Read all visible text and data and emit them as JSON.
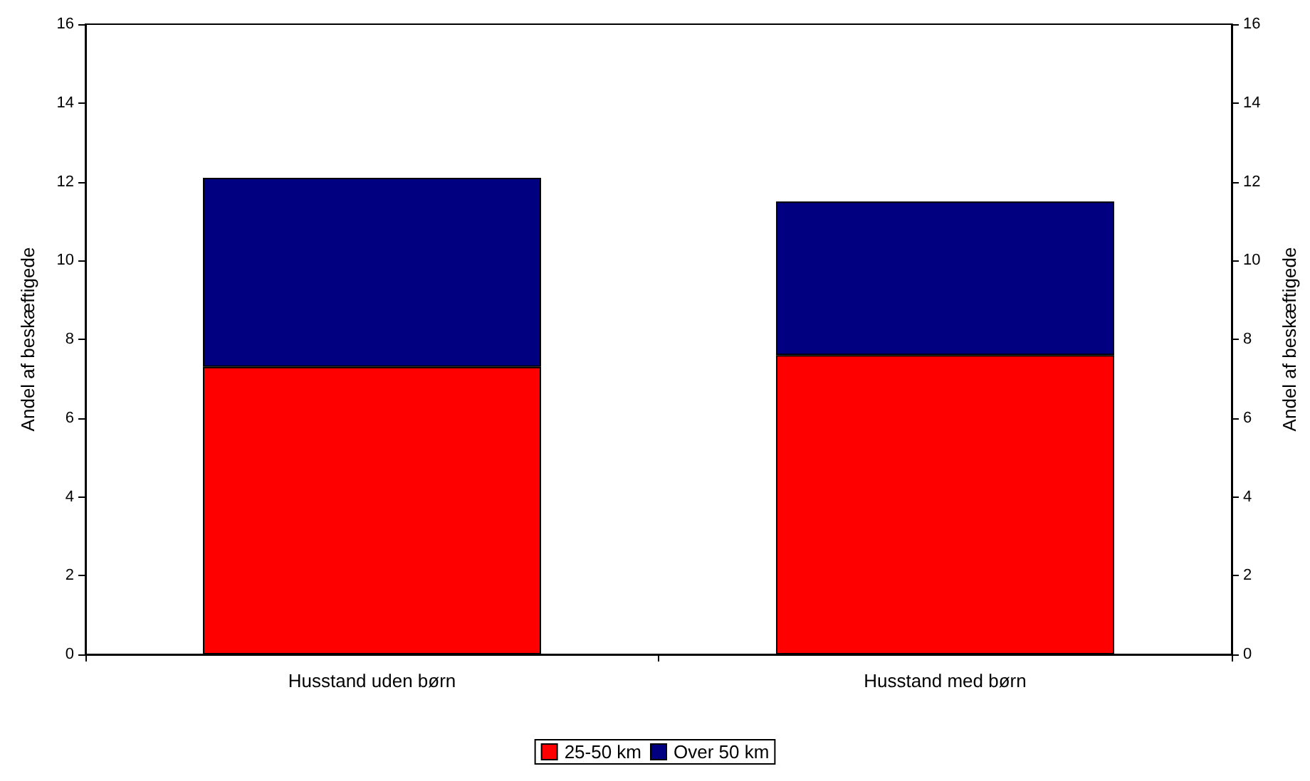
{
  "chart_data": {
    "type": "bar",
    "stacked": true,
    "ylabel": "Andel af beskæftigede",
    "y2label": "Andel af beskæftigede",
    "categories": [
      "Husstand uden børn",
      "Husstand med børn"
    ],
    "series": [
      {
        "name": "25-50 km",
        "color": "#ff0000",
        "values": [
          7.3,
          7.6
        ]
      },
      {
        "name": "Over 50 km",
        "color": "#000080",
        "values": [
          4.8,
          3.9
        ]
      }
    ],
    "ylim": [
      0,
      16
    ],
    "yticks": [
      0,
      2,
      4,
      6,
      8,
      10,
      12,
      14,
      16
    ],
    "y2lim": [
      0,
      16
    ],
    "y2ticks": [
      0,
      2,
      4,
      6,
      8,
      10,
      12,
      14,
      16
    ],
    "grid": false,
    "legend": "bottom"
  }
}
